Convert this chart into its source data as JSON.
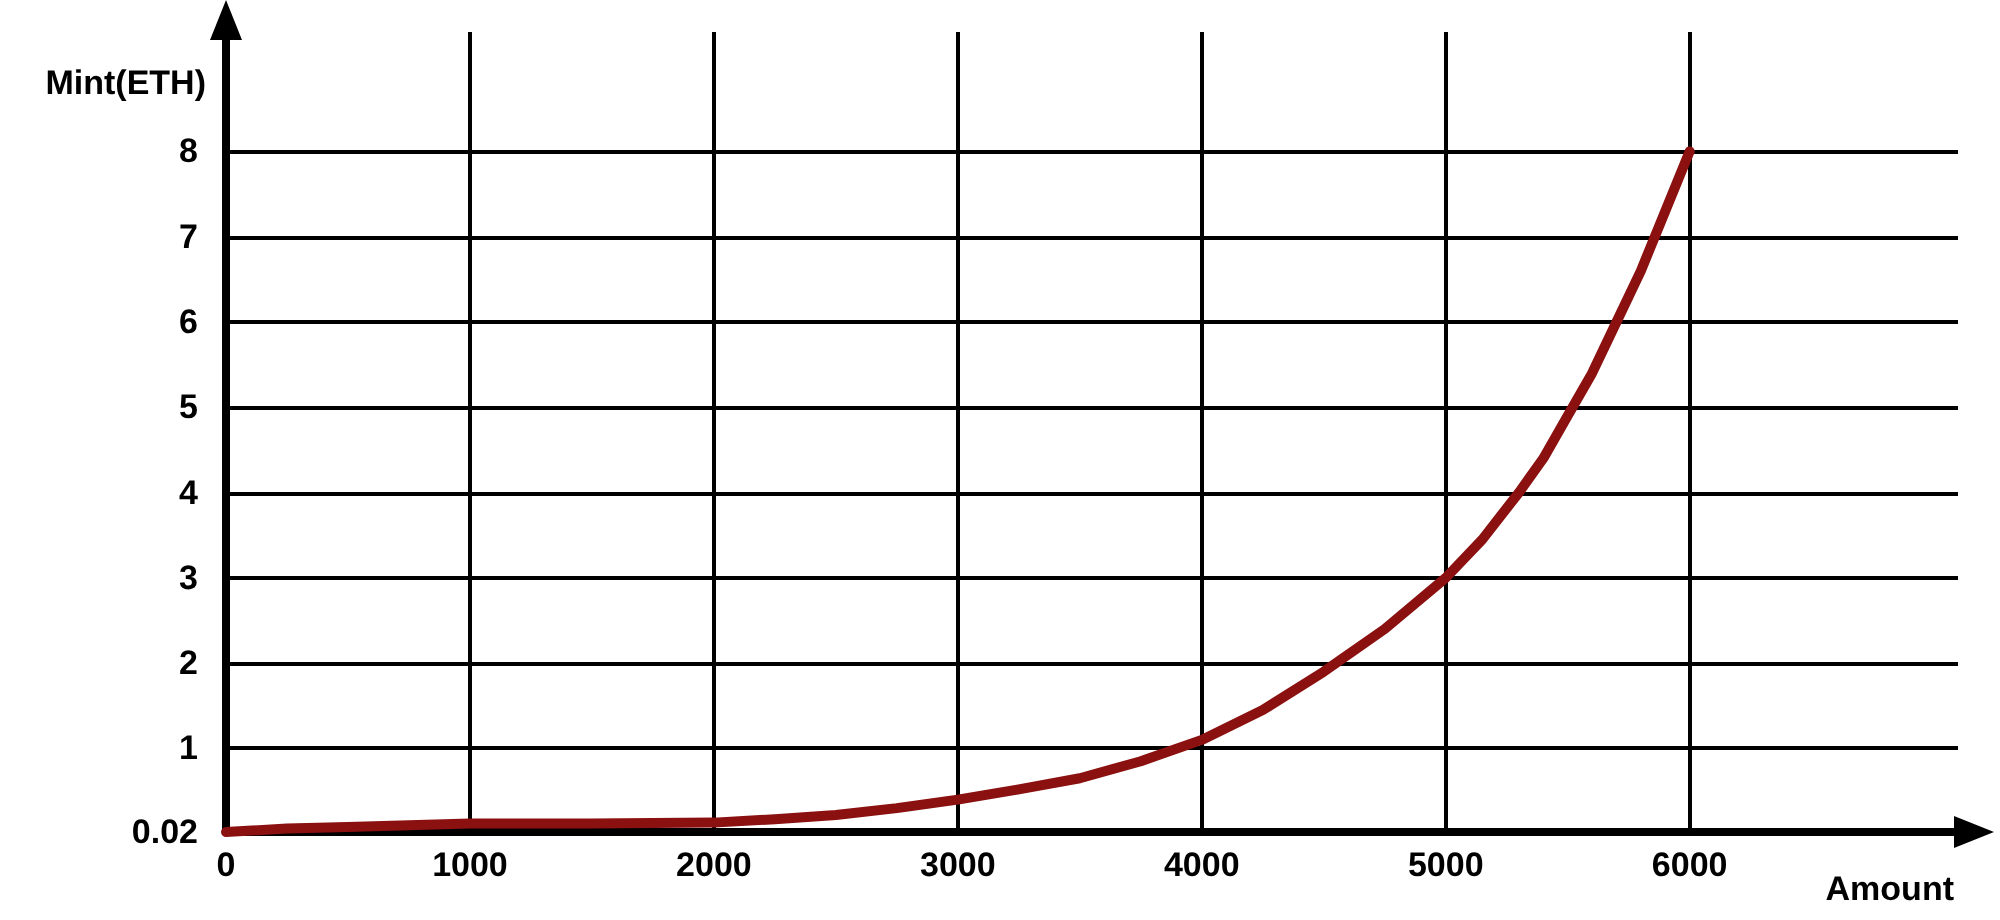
{
  "chart_data": {
    "type": "line",
    "xlabel": "Amount",
    "ylabel": "Mint(ETH)",
    "x": [
      0,
      250,
      500,
      1000,
      1500,
      2000,
      2250,
      2500,
      2750,
      3000,
      3250,
      3500,
      3750,
      4000,
      4250,
      4500,
      4750,
      5000,
      5150,
      5300,
      5400,
      5500,
      5600,
      5700,
      5800,
      5900,
      6000
    ],
    "series": [
      {
        "color": "#8b1010",
        "values": [
          0.02,
          0.06,
          0.08,
          0.12,
          0.12,
          0.13,
          0.17,
          0.22,
          0.3,
          0.4,
          0.52,
          0.65,
          0.85,
          1.1,
          1.45,
          1.9,
          2.4,
          3.0,
          3.45,
          4.0,
          4.4,
          4.9,
          5.4,
          6.0,
          6.6,
          7.3,
          8.0
        ]
      }
    ],
    "xlim": [
      0,
      7100
    ],
    "xticks": [
      0,
      1000,
      2000,
      3000,
      4000,
      5000,
      6000
    ],
    "ylim": [
      0.02,
      9.4
    ],
    "yticks": [
      0.02,
      1,
      2,
      3,
      4,
      5,
      6,
      7,
      8
    ],
    "grid": true,
    "marker": "none",
    "line_style": "solid"
  }
}
